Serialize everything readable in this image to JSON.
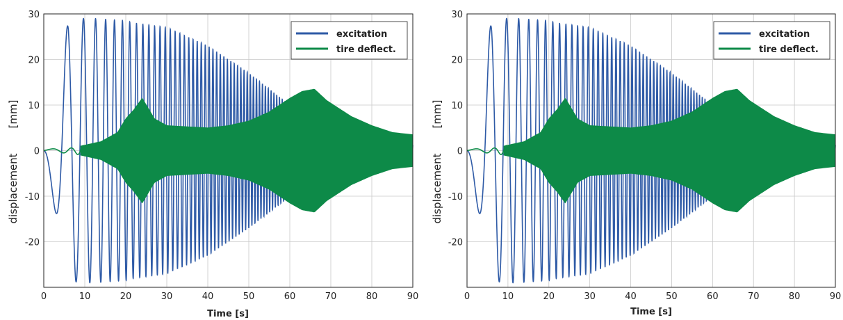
{
  "colors": {
    "excitation": "#2e5aa6",
    "tire": "#0d8a48",
    "grid": "#c8c8c8",
    "axis": "#222222"
  },
  "chart_data": [
    {
      "type": "line",
      "title": "",
      "xlabel": "Time [s]",
      "ylabel": "displacement",
      "ylabel_unit": "[mm]",
      "xlim": [
        0,
        90
      ],
      "ylim": [
        -30,
        30
      ],
      "xticks": [
        0,
        10,
        20,
        30,
        40,
        50,
        60,
        70,
        80,
        90
      ],
      "yticks": [
        -20,
        -10,
        0,
        10,
        20,
        30
      ],
      "grid": true,
      "legend": "top-right",
      "series": [
        {
          "name": "excitation",
          "envelope_x": [
            0,
            6,
            9,
            12,
            20,
            22,
            30,
            40,
            50,
            60,
            70,
            80,
            85,
            90
          ],
          "envelope_y": [
            0,
            28.5,
            29,
            29,
            28.5,
            28,
            27,
            23,
            17,
            10,
            5,
            3,
            2,
            1.5
          ]
        },
        {
          "name": "tire deflect.",
          "envelope_x": [
            0,
            7,
            10,
            14,
            18,
            20,
            22,
            24,
            27,
            30,
            40,
            45,
            50,
            55,
            60,
            63,
            66,
            69,
            75,
            80,
            85,
            90
          ],
          "envelope_y": [
            0.3,
            0.6,
            1.2,
            2,
            4,
            7,
            9,
            11.5,
            7,
            5.5,
            5,
            5.5,
            6.5,
            8.5,
            11.5,
            13,
            13.5,
            11,
            7.5,
            5.5,
            4,
            3.5
          ]
        }
      ]
    },
    {
      "type": "line",
      "title": "",
      "xlabel": "Time [s]",
      "ylabel": "displacement",
      "ylabel_unit": "[mm]",
      "xlim": [
        0,
        90
      ],
      "ylim": [
        -30,
        30
      ],
      "xticks": [
        0,
        10,
        20,
        30,
        40,
        50,
        60,
        70,
        80,
        90
      ],
      "yticks": [
        -20,
        -10,
        0,
        10,
        20,
        30
      ],
      "grid": true,
      "legend": "top-right",
      "series": [
        {
          "name": "excitation",
          "envelope_x": [
            0,
            6,
            9,
            12,
            20,
            22,
            30,
            40,
            50,
            60,
            70,
            80,
            85,
            90
          ],
          "envelope_y": [
            0,
            28.5,
            29,
            29,
            28.5,
            28,
            27,
            23,
            17,
            10,
            5,
            3,
            2,
            1.5
          ]
        },
        {
          "name": "tire deflect.",
          "envelope_x": [
            0,
            7,
            10,
            14,
            18,
            20,
            22,
            24,
            27,
            30,
            40,
            45,
            50,
            55,
            60,
            63,
            66,
            69,
            75,
            80,
            85,
            90
          ],
          "envelope_y": [
            0.3,
            0.6,
            1.2,
            2,
            4,
            7,
            9,
            11.5,
            7,
            5.5,
            5,
            5.5,
            6.5,
            8.5,
            11.5,
            13,
            13.5,
            11,
            7.5,
            5.5,
            4,
            3.5
          ]
        }
      ]
    }
  ]
}
